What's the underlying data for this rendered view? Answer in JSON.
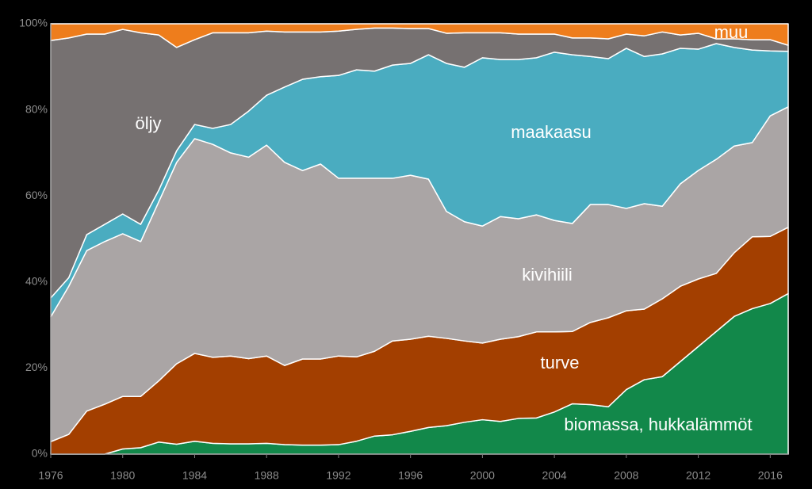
{
  "chart_data": {
    "type": "stacked_area",
    "x": [
      1976,
      1977,
      1978,
      1979,
      1980,
      1981,
      1982,
      1983,
      1984,
      1985,
      1986,
      1987,
      1988,
      1989,
      1990,
      1991,
      1992,
      1993,
      1994,
      1995,
      1996,
      1997,
      1998,
      1999,
      2000,
      2001,
      2002,
      2003,
      2004,
      2005,
      2006,
      2007,
      2008,
      2009,
      2010,
      2011,
      2012,
      2013,
      2014,
      2015,
      2016,
      2017
    ],
    "xlim": [
      1976,
      2017
    ],
    "xticks": [
      1976,
      1980,
      1984,
      1988,
      1992,
      1996,
      2000,
      2004,
      2008,
      2012,
      2016
    ],
    "ylim": [
      0,
      100
    ],
    "yticks": [
      {
        "value": 0,
        "label": "0%"
      },
      {
        "value": 20,
        "label": "20%"
      },
      {
        "value": 40,
        "label": "40%"
      },
      {
        "value": 60,
        "label": "60%"
      },
      {
        "value": 80,
        "label": "80%"
      },
      {
        "value": 100,
        "label": "100%"
      }
    ],
    "series": [
      {
        "name": "biomassa, hukkalämmöt",
        "color": "#12884a",
        "values": [
          0,
          0,
          0,
          0,
          1.2,
          1.5,
          2.8,
          2.3,
          3.0,
          2.5,
          2.4,
          2.4,
          2.5,
          2.2,
          2.1,
          2.1,
          2.2,
          3.0,
          4.2,
          4.5,
          5.3,
          6.2,
          6.6,
          7.4,
          8.0,
          7.6,
          8.3,
          8.4,
          9.8,
          11.7,
          11.5,
          11.0,
          15.0,
          17.3,
          18.0,
          21.5,
          25.0,
          28.5,
          32.0,
          33.8,
          35.0,
          37.3
        ]
      },
      {
        "name": "turve",
        "color": "#a33f00",
        "values": [
          2.9,
          4.6,
          10.0,
          11.6,
          12.2,
          11.9,
          14.2,
          18.7,
          20.4,
          20.0,
          20.4,
          19.8,
          20.3,
          18.4,
          20.0,
          20.0,
          20.6,
          19.6,
          19.7,
          21.8,
          21.4,
          21.2,
          20.3,
          18.9,
          17.8,
          19.1,
          19.0,
          20.0,
          18.6,
          16.8,
          19.1,
          20.7,
          18.3,
          16.4,
          18.1,
          17.5,
          15.7,
          13.5,
          14.8,
          16.7,
          15.6,
          15.4
        ]
      },
      {
        "name": "kivihiili",
        "color": "#aaa5a5",
        "values": [
          29.0,
          34.4,
          37.3,
          37.8,
          37.8,
          36.0,
          41.6,
          46.8,
          49.9,
          49.5,
          47.2,
          46.8,
          49.0,
          47.2,
          43.8,
          45.3,
          41.3,
          41.5,
          40.2,
          37.8,
          38.1,
          36.5,
          29.5,
          27.7,
          27.2,
          28.5,
          27.4,
          27.2,
          25.9,
          25.1,
          27.4,
          26.3,
          23.8,
          24.5,
          21.5,
          23.8,
          25.2,
          26.5,
          24.8,
          21.9,
          28.0,
          28.0
        ]
      },
      {
        "name": "maakaasu",
        "color": "#4aacc0",
        "values": [
          4.4,
          2.0,
          3.7,
          4.0,
          4.6,
          4.0,
          2.7,
          2.7,
          3.3,
          3.7,
          6.6,
          10.7,
          11.6,
          17.5,
          21.2,
          20.3,
          23.9,
          25.2,
          24.9,
          26.3,
          26.0,
          28.9,
          34.4,
          35.9,
          39.1,
          36.5,
          37.0,
          36.5,
          39.1,
          39.2,
          34.4,
          33.9,
          37.2,
          34.2,
          35.4,
          31.5,
          28.2,
          26.9,
          22.9,
          21.5,
          15.1,
          12.9
        ]
      },
      {
        "name": "öljy",
        "color": "#767171",
        "values": [
          59.8,
          55.7,
          46.6,
          44.2,
          42.9,
          44.5,
          36.1,
          24.0,
          19.7,
          22.2,
          21.3,
          18.2,
          14.9,
          12.8,
          11.0,
          10.4,
          10.3,
          9.4,
          10.0,
          8.6,
          8.1,
          6.1,
          7.0,
          8.0,
          5.8,
          6.2,
          5.9,
          5.5,
          4.2,
          3.9,
          4.3,
          4.6,
          3.3,
          4.8,
          5.1,
          3.1,
          3.7,
          1.1,
          2.0,
          2.4,
          2.6,
          1.4
        ]
      },
      {
        "name": "muu",
        "color": "#ee7d1c",
        "values": [
          3.9,
          3.3,
          2.4,
          2.4,
          1.3,
          2.1,
          2.6,
          5.5,
          3.7,
          2.1,
          2.1,
          2.1,
          1.7,
          1.9,
          1.9,
          1.9,
          1.7,
          1.3,
          1.0,
          1.0,
          1.1,
          1.1,
          2.2,
          2.1,
          2.1,
          2.1,
          2.4,
          2.4,
          2.4,
          3.3,
          3.3,
          3.5,
          2.4,
          2.8,
          1.9,
          2.6,
          2.2,
          3.5,
          3.5,
          3.7,
          3.7,
          5.0
        ]
      }
    ]
  }
}
